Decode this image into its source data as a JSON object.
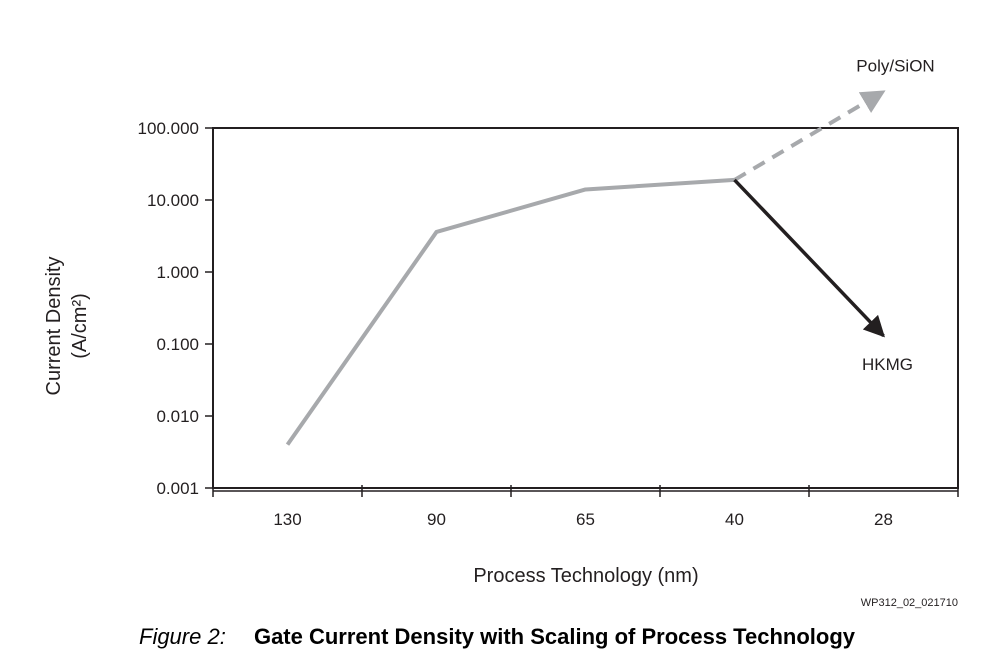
{
  "chart_data": {
    "type": "line",
    "title": "Gate Current Density with Scaling of Process Technology",
    "figure_label": "Figure 2:",
    "figure_id": "WP312_02_021710",
    "xlabel": "Process Technology (nm)",
    "ylabel_line1": "Current Density",
    "ylabel_line2": "(A/cm²)",
    "yscale": "log",
    "ylim": [
      0.001,
      100
    ],
    "categories": [
      "130",
      "90",
      "65",
      "40",
      "28"
    ],
    "y_ticks": [
      {
        "value": 100,
        "label": "100.000"
      },
      {
        "value": 10,
        "label": "10.000"
      },
      {
        "value": 1,
        "label": "1.000"
      },
      {
        "value": 0.1,
        "label": "0.100"
      },
      {
        "value": 0.01,
        "label": "0.010"
      },
      {
        "value": 0.001,
        "label": "0.001"
      }
    ],
    "series": [
      {
        "name": "Gate current density",
        "style": "solid",
        "color": "#a7a9ac",
        "points": [
          {
            "x": "130",
            "y": 0.004
          },
          {
            "x": "90",
            "y": 3.6
          },
          {
            "x": "65",
            "y": 14
          },
          {
            "x": "40",
            "y": 19
          }
        ]
      }
    ],
    "annotations": [
      {
        "label": "Poly/SiON",
        "style": "dashed-arrow",
        "color": "#a7a9ac",
        "from": {
          "x": "40",
          "y": 19
        },
        "to": {
          "x": "28",
          "y": 320
        }
      },
      {
        "label": "HKMG",
        "style": "solid-arrow",
        "color": "#231f20",
        "from": {
          "x": "40",
          "y": 19
        },
        "to": {
          "x": "28",
          "y": 0.13
        }
      }
    ]
  },
  "colors": {
    "axis": "#231f20",
    "series": "#a7a9ac",
    "hkmg": "#231f20"
  }
}
